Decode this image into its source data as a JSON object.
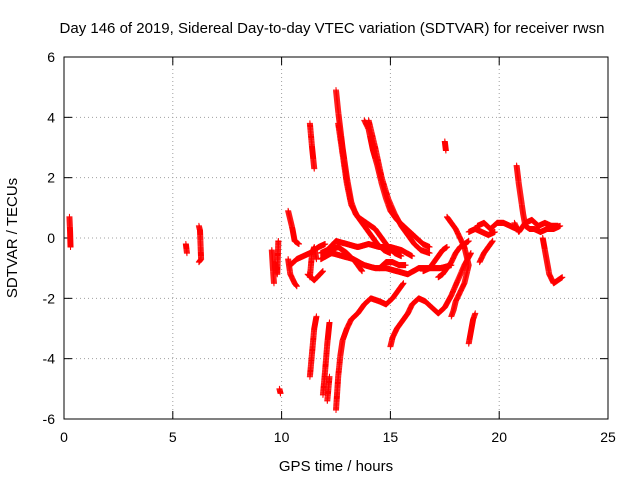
{
  "chart_data": {
    "type": "scatter",
    "title": "Day 146 of 2019, Sidereal Day-to-day VTEC variation (SDTVAR) for receiver rwsn",
    "xlabel": "GPS time / hours",
    "ylabel": "SDTVAR / TECUs",
    "xlim": [
      0,
      25
    ],
    "ylim": [
      -6,
      6
    ],
    "xticks": [
      0,
      5,
      10,
      15,
      20,
      25
    ],
    "yticks": [
      -6,
      -4,
      -2,
      0,
      2,
      4,
      6
    ],
    "grid": true,
    "marker": "+",
    "color": "#ff0000",
    "series_tracks": [
      [
        [
          0.25,
          0.7
        ],
        [
          0.28,
          0.2
        ],
        [
          0.3,
          -0.3
        ]
      ],
      [
        [
          5.6,
          -0.2
        ],
        [
          5.65,
          -0.5
        ]
      ],
      [
        [
          6.2,
          0.4
        ],
        [
          6.25,
          0.25
        ],
        [
          6.3,
          -0.7
        ],
        [
          6.2,
          -0.8
        ]
      ],
      [
        [
          9.55,
          -0.4
        ],
        [
          9.6,
          -1.0
        ],
        [
          9.65,
          -1.5
        ]
      ],
      [
        [
          9.7,
          -0.8
        ],
        [
          9.8,
          -1.2
        ],
        [
          9.85,
          -0.1
        ]
      ],
      [
        [
          9.9,
          -5.0
        ],
        [
          9.95,
          -5.15
        ]
      ],
      [
        [
          10.3,
          0.9
        ],
        [
          10.5,
          0.3
        ],
        [
          10.6,
          -0.1
        ],
        [
          10.8,
          -0.2
        ]
      ],
      [
        [
          10.3,
          -0.7
        ],
        [
          10.4,
          -1.2
        ],
        [
          10.6,
          -1.5
        ],
        [
          10.7,
          -1.6
        ]
      ],
      [
        [
          10.4,
          -0.9
        ],
        [
          10.7,
          -0.7
        ],
        [
          11.0,
          -0.6
        ],
        [
          11.3,
          -0.5
        ],
        [
          11.7,
          -0.3
        ],
        [
          12.0,
          -0.2
        ]
      ],
      [
        [
          11.2,
          -1.2
        ],
        [
          11.5,
          -1.4
        ],
        [
          11.9,
          -1.1
        ]
      ],
      [
        [
          11.3,
          -1.3
        ],
        [
          11.4,
          -0.5
        ],
        [
          11.5,
          -0.3
        ],
        [
          11.6,
          -0.7
        ]
      ],
      [
        [
          11.3,
          3.8
        ],
        [
          11.4,
          3.0
        ],
        [
          11.5,
          2.3
        ]
      ],
      [
        [
          11.3,
          -4.6
        ],
        [
          11.4,
          -3.8
        ],
        [
          11.5,
          -3.0
        ],
        [
          11.6,
          -2.6
        ]
      ],
      [
        [
          11.9,
          -5.2
        ],
        [
          12.0,
          -4.4
        ],
        [
          12.1,
          -3.5
        ],
        [
          12.2,
          -2.8
        ]
      ],
      [
        [
          12.1,
          -5.4
        ],
        [
          12.2,
          -4.6
        ]
      ],
      [
        [
          11.8,
          -0.5
        ],
        [
          12.1,
          -0.4
        ],
        [
          12.5,
          -0.1
        ],
        [
          13.0,
          -0.2
        ],
        [
          13.5,
          -0.3
        ],
        [
          14.0,
          -0.2
        ],
        [
          14.5,
          -0.3
        ],
        [
          15.0,
          -0.3
        ],
        [
          15.5,
          -0.4
        ],
        [
          16.0,
          -0.6
        ]
      ],
      [
        [
          11.8,
          -0.7
        ],
        [
          12.3,
          -0.5
        ],
        [
          12.8,
          -0.6
        ],
        [
          13.3,
          -0.7
        ],
        [
          13.8,
          -0.9
        ],
        [
          14.3,
          -1.0
        ],
        [
          14.8,
          -1.0
        ],
        [
          15.3,
          -1.1
        ],
        [
          15.8,
          -1.2
        ],
        [
          16.3,
          -1.0
        ],
        [
          16.8,
          -1.0
        ],
        [
          17.3,
          -1.0
        ],
        [
          17.8,
          -0.9
        ]
      ],
      [
        [
          12.5,
          4.9
        ],
        [
          12.6,
          4.2
        ],
        [
          12.7,
          3.6
        ],
        [
          12.8,
          3.0
        ],
        [
          12.9,
          2.5
        ],
        [
          13.0,
          2.0
        ],
        [
          13.1,
          1.6
        ],
        [
          13.2,
          1.2
        ],
        [
          13.4,
          0.8
        ],
        [
          13.6,
          0.6
        ],
        [
          13.8,
          0.4
        ],
        [
          14.1,
          0.1
        ],
        [
          14.4,
          -0.2
        ],
        [
          14.7,
          -0.4
        ],
        [
          15.0,
          -0.5
        ]
      ],
      [
        [
          12.6,
          3.8
        ],
        [
          12.8,
          2.8
        ],
        [
          13.0,
          1.8
        ],
        [
          13.2,
          1.1
        ],
        [
          13.5,
          0.7
        ],
        [
          13.9,
          0.5
        ],
        [
          14.3,
          0.3
        ],
        [
          14.6,
          0.0
        ],
        [
          14.9,
          -0.3
        ],
        [
          15.2,
          -0.5
        ],
        [
          15.5,
          -0.6
        ]
      ],
      [
        [
          12.5,
          -5.7
        ],
        [
          12.6,
          -4.6
        ],
        [
          12.7,
          -3.9
        ],
        [
          12.8,
          -3.4
        ],
        [
          13.0,
          -3.0
        ],
        [
          13.2,
          -2.7
        ],
        [
          13.5,
          -2.5
        ],
        [
          13.8,
          -2.2
        ],
        [
          14.1,
          -2.0
        ],
        [
          14.5,
          -2.1
        ],
        [
          14.8,
          -2.2
        ],
        [
          15.1,
          -2.0
        ],
        [
          15.3,
          -1.8
        ],
        [
          15.6,
          -1.5
        ]
      ],
      [
        [
          12.2,
          -0.4
        ],
        [
          12.6,
          -0.3
        ],
        [
          13.0,
          -0.5
        ],
        [
          13.4,
          -0.8
        ],
        [
          13.7,
          -1.1
        ]
      ],
      [
        [
          13.8,
          3.9
        ],
        [
          14.0,
          3.6
        ],
        [
          14.2,
          2.9
        ],
        [
          14.4,
          2.4
        ],
        [
          14.6,
          1.8
        ],
        [
          14.8,
          1.3
        ],
        [
          15.0,
          0.9
        ],
        [
          15.3,
          0.6
        ],
        [
          15.6,
          0.4
        ],
        [
          15.9,
          0.2
        ],
        [
          16.2,
          0.0
        ],
        [
          16.5,
          -0.2
        ],
        [
          16.8,
          -0.3
        ]
      ],
      [
        [
          14.0,
          3.9
        ],
        [
          14.3,
          3.0
        ],
        [
          14.6,
          2.0
        ],
        [
          14.9,
          1.3
        ],
        [
          15.2,
          0.8
        ],
        [
          15.5,
          0.4
        ],
        [
          15.8,
          0.1
        ],
        [
          16.1,
          -0.2
        ],
        [
          16.4,
          -0.4
        ],
        [
          16.8,
          -0.5
        ]
      ],
      [
        [
          14.5,
          -1.0
        ],
        [
          14.8,
          -0.8
        ],
        [
          15.1,
          -0.8
        ],
        [
          15.4,
          -0.9
        ],
        [
          15.7,
          -0.9
        ]
      ],
      [
        [
          15.0,
          -3.6
        ],
        [
          15.1,
          -3.3
        ],
        [
          15.3,
          -3.0
        ],
        [
          15.5,
          -2.8
        ],
        [
          15.8,
          -2.5
        ],
        [
          16.0,
          -2.2
        ],
        [
          16.3,
          -2.0
        ],
        [
          16.6,
          -2.1
        ],
        [
          16.9,
          -2.3
        ],
        [
          17.2,
          -2.5
        ],
        [
          17.5,
          -2.3
        ],
        [
          17.8,
          -1.9
        ],
        [
          18.1,
          -1.4
        ],
        [
          18.4,
          -0.9
        ],
        [
          18.7,
          -0.5
        ]
      ],
      [
        [
          16.5,
          -1.1
        ],
        [
          16.8,
          -1.0
        ],
        [
          17.1,
          -0.7
        ],
        [
          17.4,
          -0.4
        ],
        [
          17.6,
          -0.3
        ]
      ],
      [
        [
          17.2,
          -1.3
        ],
        [
          17.4,
          -1.2
        ],
        [
          17.6,
          -1.0
        ],
        [
          17.8,
          -0.8
        ],
        [
          18.0,
          -0.5
        ],
        [
          18.2,
          -0.3
        ],
        [
          18.4,
          -0.2
        ],
        [
          18.6,
          -0.1
        ]
      ],
      [
        [
          17.6,
          0.7
        ],
        [
          17.8,
          0.5
        ],
        [
          18.0,
          0.3
        ],
        [
          18.2,
          0.0
        ],
        [
          18.4,
          -0.3
        ],
        [
          18.5,
          -0.6
        ],
        [
          18.6,
          -0.9
        ],
        [
          18.5,
          -1.2
        ],
        [
          18.4,
          -1.5
        ],
        [
          18.2,
          -1.8
        ],
        [
          18.0,
          -2.1
        ],
        [
          17.9,
          -2.4
        ],
        [
          17.8,
          -2.6
        ]
      ],
      [
        [
          17.5,
          3.2
        ],
        [
          17.55,
          2.9
        ]
      ],
      [
        [
          18.6,
          -3.5
        ],
        [
          18.7,
          -3.1
        ],
        [
          18.8,
          -2.7
        ],
        [
          18.9,
          -2.5
        ]
      ],
      [
        [
          18.6,
          0.2
        ],
        [
          18.9,
          0.3
        ],
        [
          19.2,
          0.2
        ],
        [
          19.5,
          0.1
        ],
        [
          19.8,
          0.2
        ]
      ],
      [
        [
          19.0,
          0.4
        ],
        [
          19.3,
          0.5
        ],
        [
          19.6,
          0.3
        ],
        [
          19.9,
          0.5
        ],
        [
          20.2,
          0.5
        ],
        [
          20.5,
          0.4
        ],
        [
          20.8,
          0.3
        ]
      ],
      [
        [
          19.1,
          -0.8
        ],
        [
          19.3,
          -0.5
        ],
        [
          19.5,
          -0.3
        ],
        [
          19.7,
          -0.1
        ]
      ],
      [
        [
          20.8,
          2.4
        ],
        [
          20.9,
          1.8
        ],
        [
          21.0,
          1.3
        ],
        [
          21.1,
          0.8
        ],
        [
          21.2,
          0.4
        ],
        [
          21.4,
          0.3
        ],
        [
          21.6,
          0.3
        ],
        [
          21.9,
          0.2
        ],
        [
          22.2,
          0.3
        ],
        [
          22.5,
          0.3
        ],
        [
          22.8,
          0.4
        ]
      ],
      [
        [
          20.7,
          0.5
        ],
        [
          20.9,
          0.2
        ],
        [
          21.2,
          0.5
        ],
        [
          21.5,
          0.6
        ],
        [
          21.8,
          0.4
        ],
        [
          22.1,
          0.5
        ],
        [
          22.4,
          0.4
        ],
        [
          22.7,
          0.4
        ]
      ],
      [
        [
          22.0,
          0.0
        ],
        [
          22.1,
          -0.4
        ],
        [
          22.2,
          -0.8
        ],
        [
          22.3,
          -1.2
        ],
        [
          22.5,
          -1.5
        ],
        [
          22.7,
          -1.4
        ],
        [
          22.9,
          -1.3
        ]
      ]
    ]
  }
}
